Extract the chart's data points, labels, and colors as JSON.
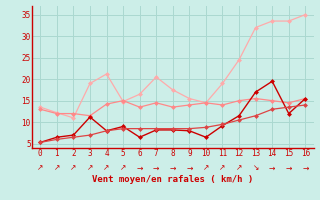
{
  "x": [
    0,
    1,
    2,
    3,
    4,
    5,
    6,
    7,
    8,
    9,
    10,
    11,
    12,
    13,
    14,
    15,
    16
  ],
  "line1_light": [
    13.5,
    12.2,
    11.0,
    19.0,
    21.2,
    14.8,
    16.5,
    20.5,
    17.5,
    15.5,
    14.5,
    19.0,
    24.5,
    32.0,
    33.5,
    33.5,
    35.0
  ],
  "line2_med": [
    13.0,
    12.0,
    12.0,
    11.5,
    14.2,
    15.0,
    13.5,
    14.5,
    13.5,
    14.0,
    14.5,
    14.0,
    15.0,
    15.5,
    15.0,
    14.5,
    15.5
  ],
  "line3_dark": [
    5.3,
    6.5,
    7.0,
    11.2,
    8.0,
    9.0,
    6.5,
    8.2,
    8.2,
    8.0,
    6.5,
    9.2,
    11.5,
    17.0,
    19.5,
    12.0,
    15.5
  ],
  "line4_smooth": [
    5.3,
    6.0,
    6.5,
    7.0,
    8.0,
    8.5,
    8.5,
    8.5,
    8.5,
    8.5,
    8.8,
    9.5,
    10.5,
    11.5,
    13.0,
    13.5,
    14.0
  ],
  "color1": "#ffaaaa",
  "color2": "#ff8888",
  "color3": "#cc0000",
  "color4": "#dd4444",
  "bg_color": "#cceee8",
  "grid_color": "#aad8d0",
  "axis_color": "#cc0000",
  "xlabel": "Vent moyen/en rafales ( km/h )",
  "ylabel_ticks": [
    5,
    10,
    15,
    20,
    25,
    30,
    35
  ],
  "xlim": [
    -0.5,
    16.5
  ],
  "ylim": [
    4.0,
    37.0
  ],
  "arrow_symbols": [
    "↗",
    "↗",
    "↗",
    "↗",
    "↗",
    "↗",
    "→",
    "→",
    "→",
    "→",
    "↗",
    "↗",
    "↗",
    "↘",
    "→",
    "→",
    "→"
  ]
}
